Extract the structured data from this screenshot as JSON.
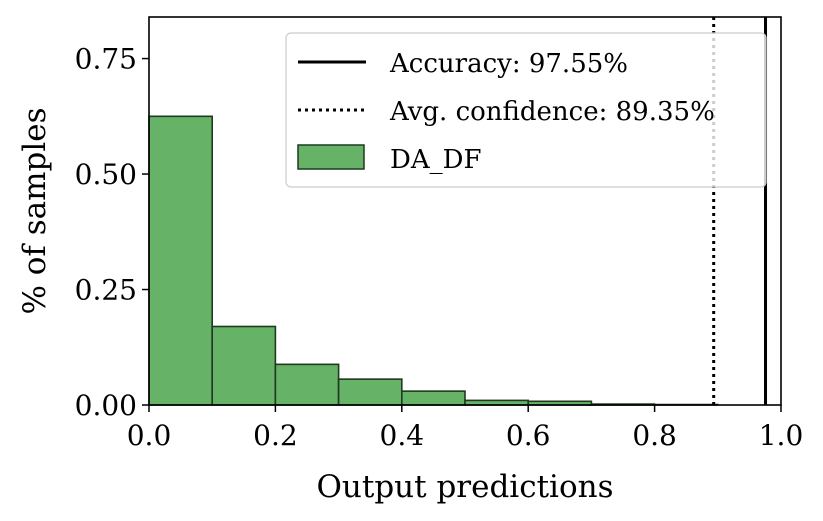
{
  "chart_data": {
    "type": "bar",
    "bin_edges": [
      0.0,
      0.1,
      0.2,
      0.3,
      0.4,
      0.5,
      0.6,
      0.7,
      0.8,
      0.9,
      1.0
    ],
    "series": [
      {
        "name": "DA_DF",
        "values": [
          0.625,
          0.17,
          0.088,
          0.056,
          0.03,
          0.01,
          0.008,
          0.002,
          0.001,
          0.0
        ],
        "color": "#66b266",
        "edge_color": "#1f3a1f"
      }
    ],
    "reference_lines": [
      {
        "label": "Accuracy: 97.55%",
        "x": 0.9755,
        "style": "solid"
      },
      {
        "label": "Avg. confidence: 89.35%",
        "x": 0.8935,
        "style": "dotted"
      }
    ],
    "xlabel": "Output predictions",
    "ylabel": "% of samples",
    "xlim": [
      0.0,
      1.0
    ],
    "ylim": [
      0.0,
      0.84
    ],
    "xticks": [
      0.0,
      0.2,
      0.4,
      0.6,
      0.8,
      1.0
    ],
    "xtick_labels": [
      "0.0",
      "0.2",
      "0.4",
      "0.6",
      "0.8",
      "1.0"
    ],
    "yticks": [
      0.0,
      0.25,
      0.5,
      0.75
    ],
    "ytick_labels": [
      "0.00",
      "0.25",
      "0.50",
      "0.75"
    ],
    "grid": false,
    "legend_placement": "top-right"
  }
}
